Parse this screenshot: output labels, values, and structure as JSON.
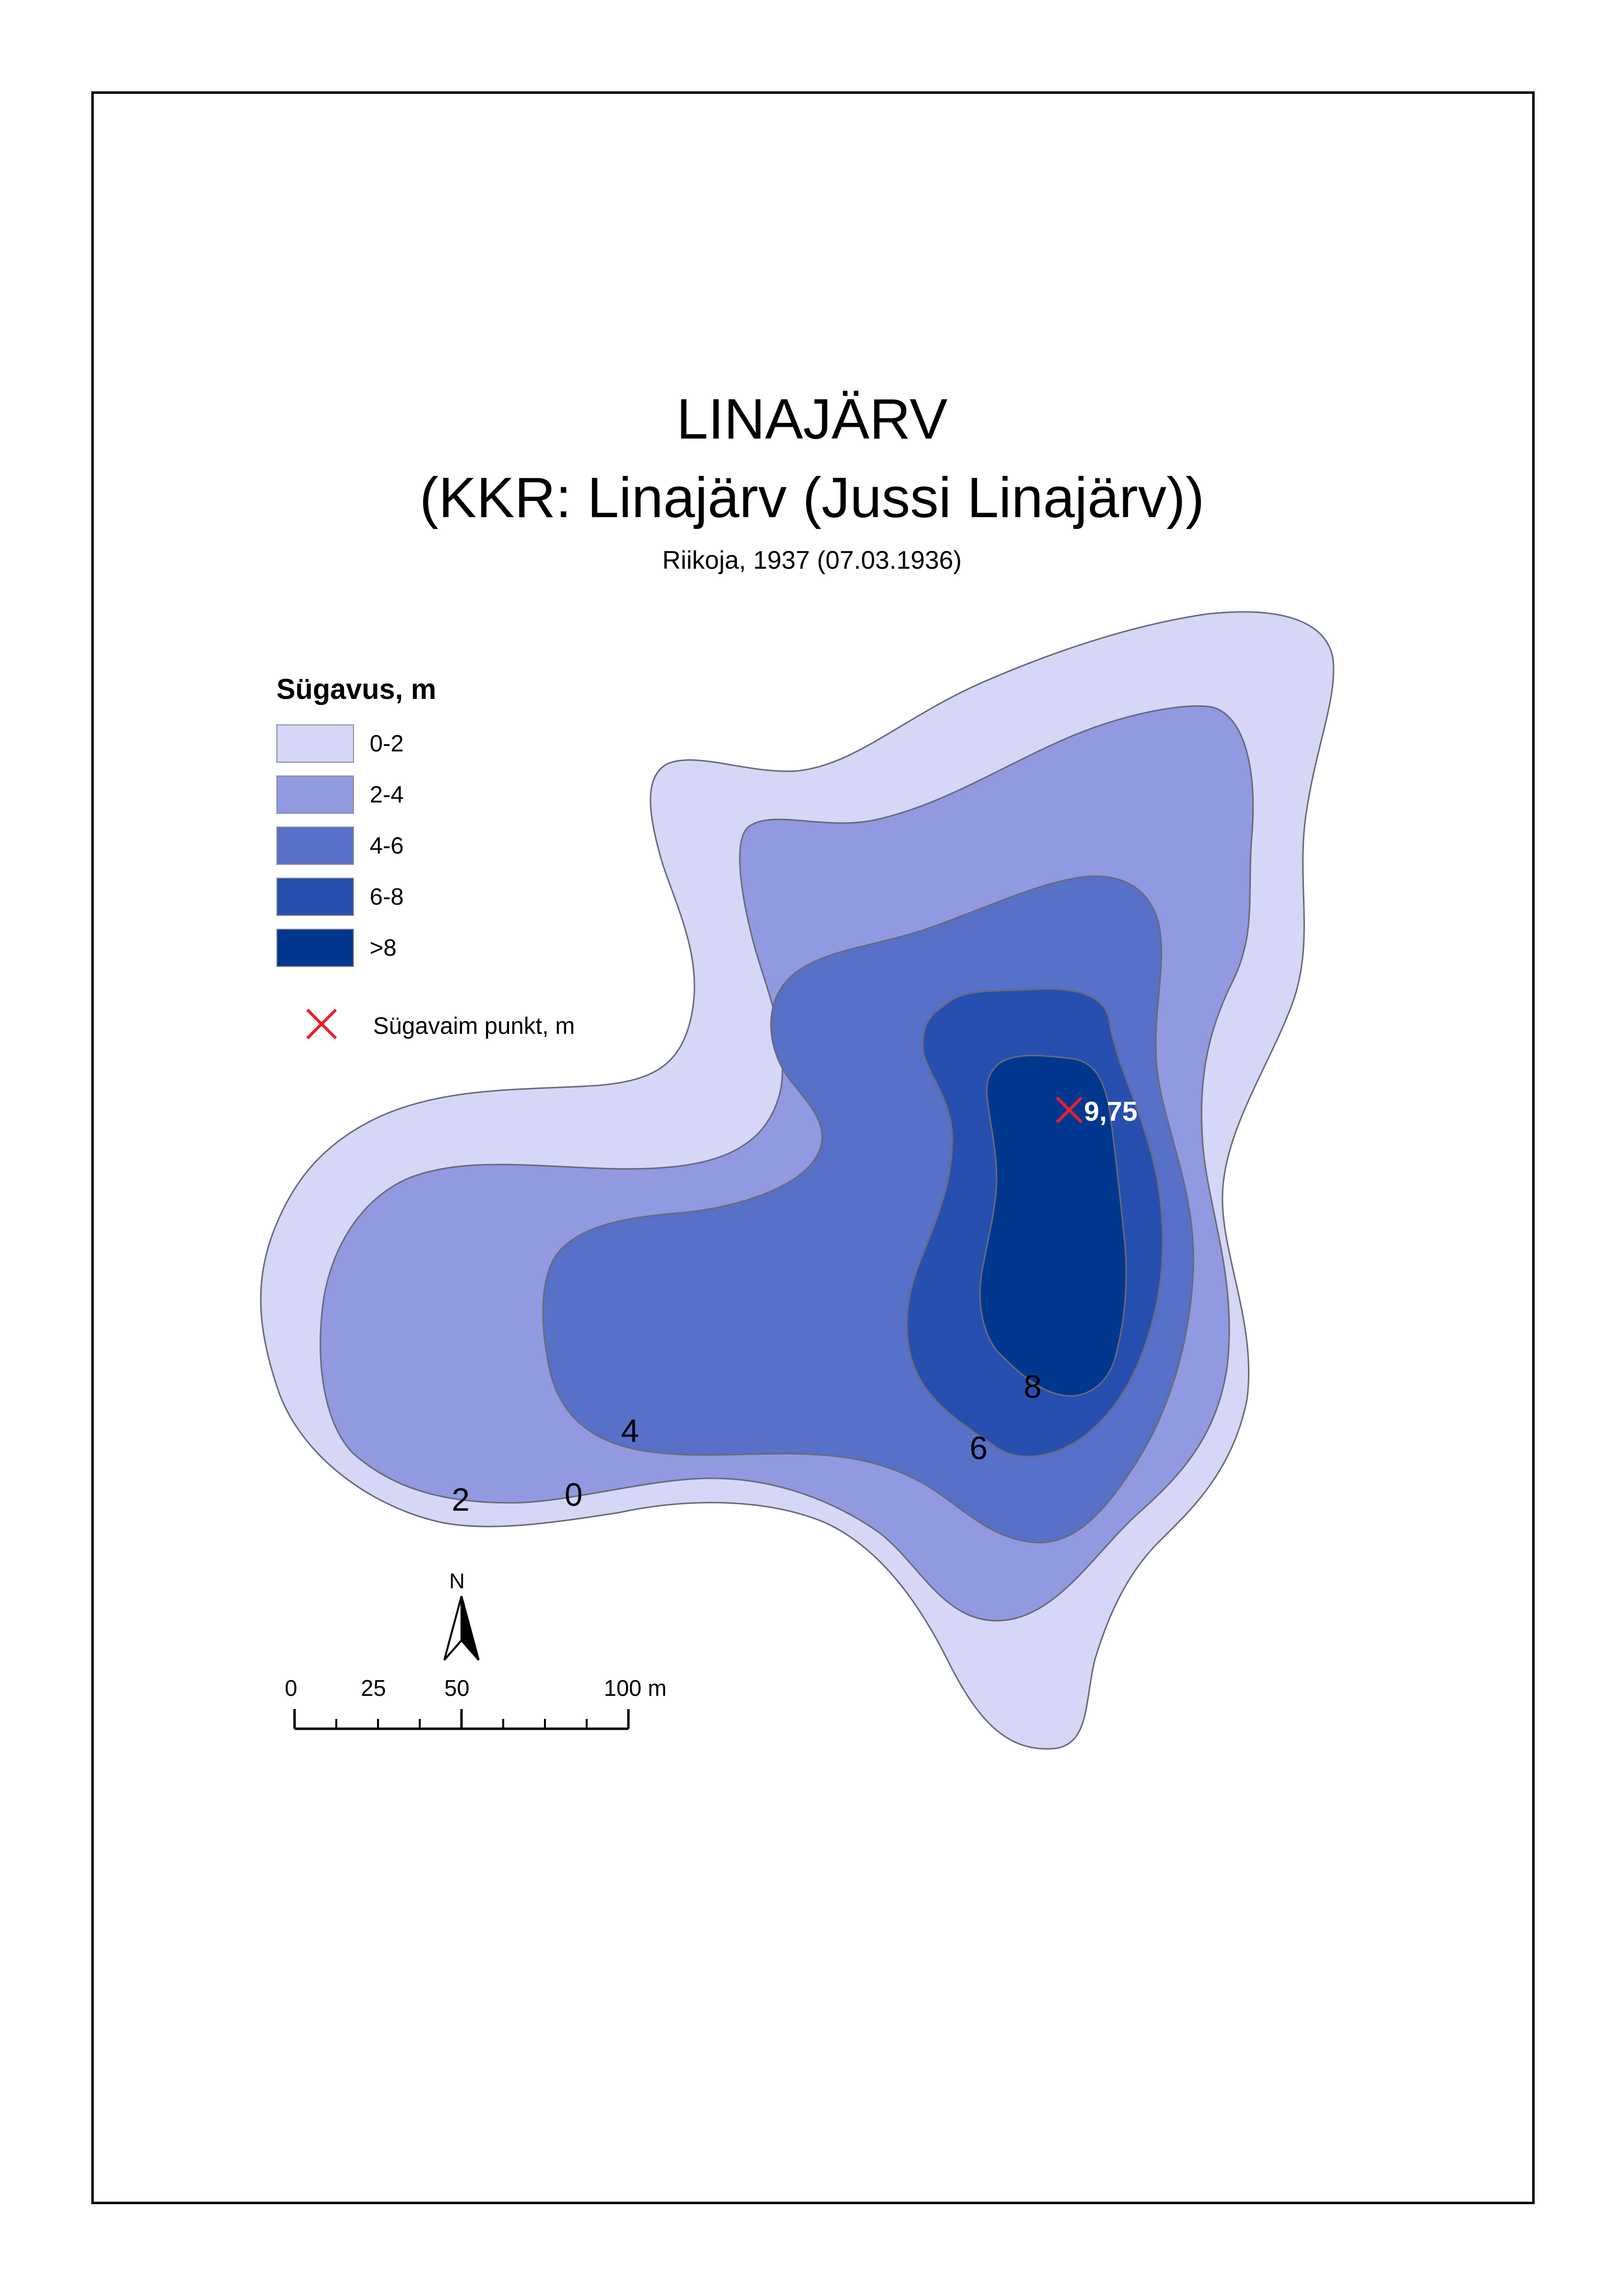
{
  "title": {
    "line1": "LINAJÄRV",
    "line2": "(KKR: Linajärv (Jussi Linajärv))",
    "subtitle": "Riikoja, 1937 (07.03.1936)"
  },
  "legend": {
    "title": "Sügavus, m",
    "classes": [
      {
        "label": "0-2",
        "color": "#d6d6f7"
      },
      {
        "label": "2-4",
        "color": "#9199e0"
      },
      {
        "label": "4-6",
        "color": "#5770c8"
      },
      {
        "label": "6-8",
        "color": "#264faf"
      },
      {
        "label": ">8",
        "color": "#02378f"
      }
    ],
    "deepest_point_label": "Sügavaim punkt, m",
    "deepest_point_color": "#e8202a"
  },
  "contour_labels": [
    "0",
    "2",
    "4",
    "6",
    "8"
  ],
  "deepest_point": {
    "value": "9,75"
  },
  "north_arrow": {
    "letter": "N"
  },
  "scale_bar": {
    "ticks": [
      "0",
      "25",
      "50",
      "100 m"
    ]
  }
}
